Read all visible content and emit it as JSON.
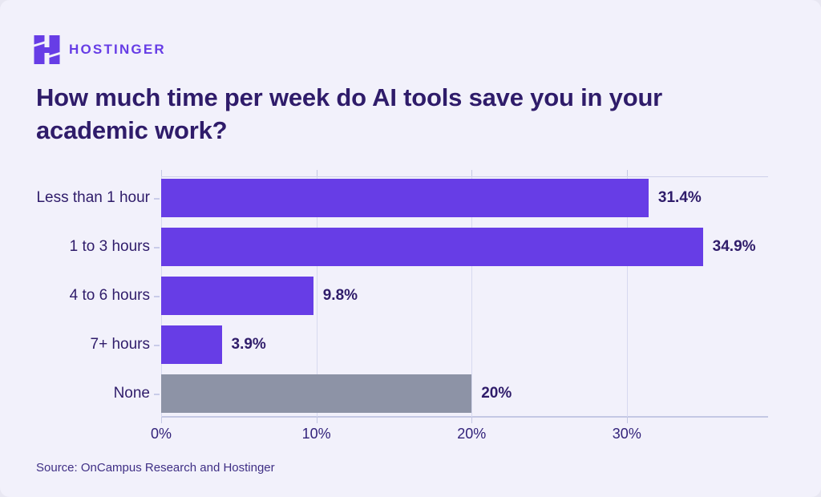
{
  "header": {
    "logo_brand": "HOSTINGER"
  },
  "title_lines": [
    "How much time per week do AI tools save you in your",
    "academic work?"
  ],
  "chart_data": {
    "type": "bar",
    "orientation": "horizontal",
    "title": "How much time per week do AI tools save you in your academic work?",
    "categories": [
      "Less than 1 hour",
      "1 to 3 hours",
      "4 to 6 hours",
      "7+ hours",
      "None"
    ],
    "values": [
      31.4,
      34.9,
      9.8,
      3.9,
      20
    ],
    "value_labels": [
      "31.4%",
      "34.9%",
      "9.8%",
      "3.9%",
      "20%"
    ],
    "bar_colors": [
      "#673de6",
      "#673de6",
      "#673de6",
      "#673de6",
      "#8d93a6"
    ],
    "x_ticks": [
      "0%",
      "10%",
      "20%",
      "30%"
    ],
    "x_tick_values": [
      0,
      10,
      20,
      30
    ],
    "xlim": [
      0,
      39.1
    ],
    "grid": true,
    "legend": "none"
  },
  "footer": {
    "source": "Source: OnCampus Research and Hostinger"
  },
  "colors": {
    "accent_purple": "#673de6",
    "neutral_gray_bar": "#8d93a6",
    "text_dark": "#2f1c6a",
    "background": "#f2f1fb",
    "gridline": "#d7d9ef",
    "axis_line": "#c4c8e4"
  },
  "icons": {
    "logo_mark": "hostinger-h-logo-icon"
  }
}
